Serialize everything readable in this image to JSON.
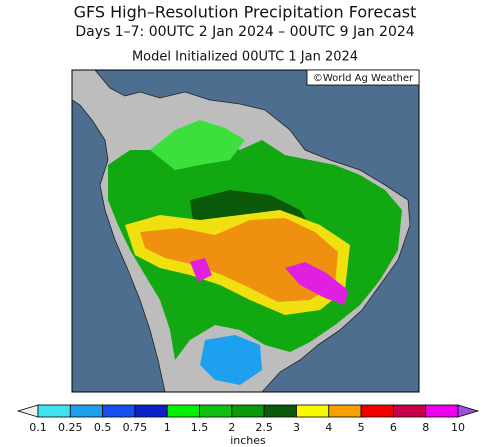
{
  "header": {
    "title": "GFS High–Resolution Precipitation Forecast",
    "subtitle": "Days 1–7: 00UTC 2 Jan 2024 – 00UTC 9 Jan 2024",
    "model_line": "Model Initialized 00UTC 1 Jan 2024"
  },
  "map": {
    "credit": "©World Ag Weather"
  },
  "colorbar": {
    "ticks": [
      0.1,
      0.25,
      0.5,
      0.75,
      1,
      1.5,
      2,
      2.5,
      3,
      4,
      5,
      6,
      8,
      10
    ],
    "colors": [
      "#3fe3f0",
      "#1ea0f0",
      "#1450f0",
      "#0a20c8",
      "#00f000",
      "#10c010",
      "#0a9a0a",
      "#0a5a0a",
      "#f8f800",
      "#f8a000",
      "#f00000",
      "#c8004a",
      "#f000f0",
      "#9a50d8",
      "#e0c8f8"
    ],
    "under_color": "#eeeeee",
    "unit": "inches"
  }
}
